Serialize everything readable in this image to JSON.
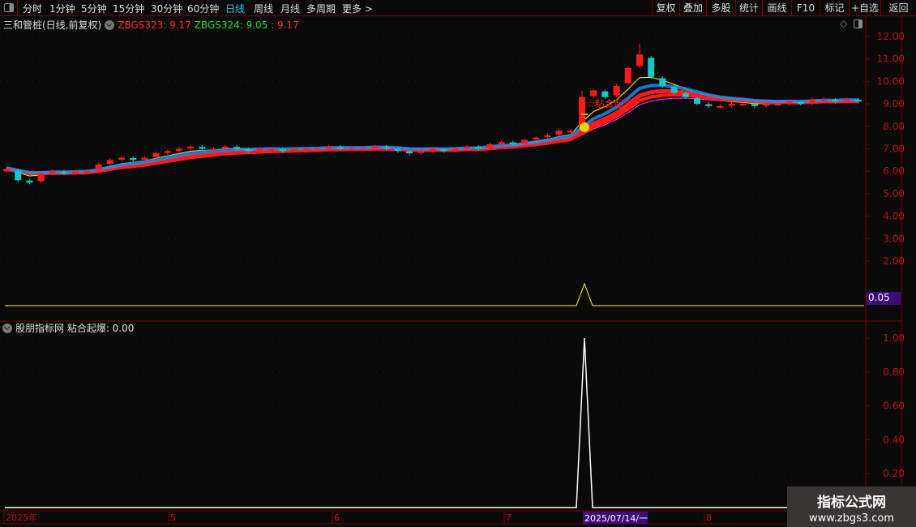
{
  "toolbar": {
    "periods": [
      "分时",
      "1分钟",
      "5分钟",
      "15分钟",
      "30分钟",
      "60分钟",
      "日线",
      "周线",
      "月线",
      "多周期",
      "更多 >"
    ],
    "active_period": "日线",
    "buttons": [
      "复权",
      "叠加",
      "多股",
      "统计",
      "画线",
      "F10",
      "标记",
      "+自选",
      "返回"
    ]
  },
  "main_pane": {
    "stock_title": "三和管桩(日线,前复权)",
    "ind1_label": "ZBGS323: 9.17",
    "ind2_label": "ZBGS324: 9.05",
    "ind3_label": ": 9.17",
    "signal_text": "☆粘合起爆",
    "signal_value_label": "0.05",
    "y_ticks": [
      "12.00",
      "11.00",
      "10.00",
      "9.00",
      "8.00",
      "7.00",
      "6.00",
      "5.00",
      "4.00",
      "3.00",
      "2.00"
    ]
  },
  "sub_pane": {
    "title": "股朋指标网 粘合起爆: 0.00",
    "y_ticks": [
      "1.00",
      "0.80",
      "0.60",
      "0.40",
      "0.20"
    ]
  },
  "time_axis": {
    "labels": [
      "2025年",
      "5",
      "6",
      "7",
      "8"
    ],
    "cursor_date": "2025/07/14/一"
  },
  "watermark": {
    "title": "指标公式网",
    "url": "www.zbgs3.com"
  },
  "colors": {
    "up": "#ff1a1a",
    "down": "#12c8c8",
    "ma_yellow": "#ffff00",
    "ma_magenta": "#ff30ff",
    "ma_blue": "#1e90ff",
    "axis": "#c01010",
    "grid": "#7a0000"
  },
  "chart_data": {
    "type": "candlestick",
    "close": [
      6.1,
      5.6,
      5.5,
      5.9,
      6.0,
      5.9,
      6.0,
      6.0,
      6.3,
      6.5,
      6.6,
      6.5,
      6.6,
      6.8,
      6.9,
      7.0,
      7.1,
      7.0,
      7.0,
      7.1,
      7.0,
      6.9,
      7.0,
      7.0,
      6.9,
      7.0,
      7.0,
      7.0,
      7.1,
      7.0,
      7.0,
      7.0,
      7.1,
      7.0,
      6.9,
      6.8,
      6.9,
      7.0,
      6.9,
      7.0,
      7.1,
      7.0,
      7.2,
      7.3,
      7.2,
      7.4,
      7.5,
      7.6,
      7.8,
      7.8,
      9.3,
      9.6,
      9.3,
      9.8,
      10.6,
      11.2,
      10.2,
      9.8,
      9.5,
      9.3,
      9.0,
      8.9,
      8.9,
      9.0,
      9.0,
      8.9,
      9.0,
      9.0,
      9.1,
      9.0,
      9.2,
      9.2,
      9.1,
      9.2,
      9.1
    ],
    "signal": {
      "index": 50,
      "value": 1.0
    },
    "price_ylim": [
      1.0,
      12.5
    ],
    "sub_ylim": [
      0,
      1.0
    ]
  }
}
